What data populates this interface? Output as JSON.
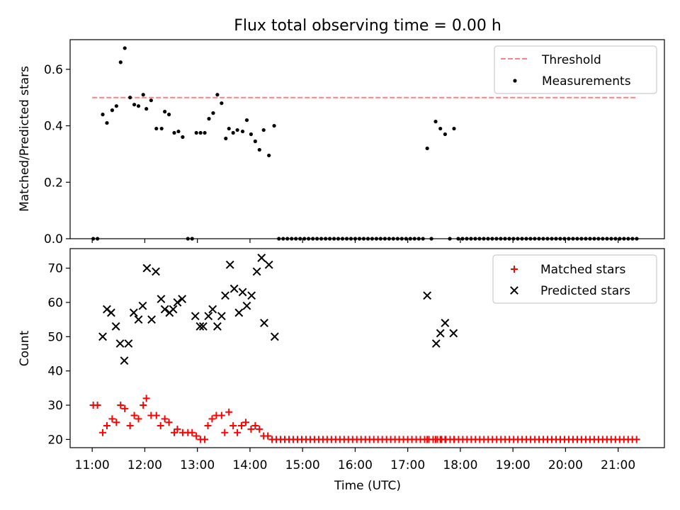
{
  "title": "Flux total observing time = 0.00 h",
  "chart_data": [
    {
      "type": "scatter",
      "panel": "top",
      "title": "Flux total observing time = 0.00 h",
      "xlabel": "",
      "ylabel": "Matched/Predicted stars",
      "xlim": [
        10.58,
        21.88
      ],
      "ylim": [
        0,
        0.705
      ],
      "yticks": [
        0.0,
        0.2,
        0.4,
        0.6
      ],
      "ytick_labels": [
        "0.0",
        "0.2",
        "0.4",
        "0.6"
      ],
      "legend_position": "top-right",
      "threshold": {
        "name": "Threshold",
        "value": 0.5,
        "x_range": [
          11.0,
          21.35
        ],
        "color": "#ff8080",
        "style": "dashed"
      },
      "series": [
        {
          "name": "Measurements",
          "color": "#000000",
          "marker": "dot",
          "points": [
            [
              11.02,
              0.0
            ],
            [
              11.1,
              0.0
            ],
            [
              11.2,
              0.44
            ],
            [
              11.28,
              0.41
            ],
            [
              11.38,
              0.455
            ],
            [
              11.46,
              0.47
            ],
            [
              11.54,
              0.625
            ],
            [
              11.62,
              0.675
            ],
            [
              11.72,
              0.5
            ],
            [
              11.8,
              0.475
            ],
            [
              11.88,
              0.47
            ],
            [
              11.97,
              0.51
            ],
            [
              12.03,
              0.46
            ],
            [
              12.12,
              0.49
            ],
            [
              12.22,
              0.39
            ],
            [
              12.32,
              0.39
            ],
            [
              12.38,
              0.45
            ],
            [
              12.46,
              0.44
            ],
            [
              12.56,
              0.375
            ],
            [
              12.64,
              0.38
            ],
            [
              12.72,
              0.36
            ],
            [
              12.82,
              0.0
            ],
            [
              12.9,
              0.0
            ],
            [
              12.98,
              0.375
            ],
            [
              13.06,
              0.375
            ],
            [
              13.14,
              0.375
            ],
            [
              13.22,
              0.425
            ],
            [
              13.3,
              0.445
            ],
            [
              13.38,
              0.51
            ],
            [
              13.46,
              0.48
            ],
            [
              13.54,
              0.355
            ],
            [
              13.6,
              0.39
            ],
            [
              13.68,
              0.375
            ],
            [
              13.76,
              0.385
            ],
            [
              13.86,
              0.38
            ],
            [
              13.94,
              0.42
            ],
            [
              14.02,
              0.37
            ],
            [
              14.1,
              0.345
            ],
            [
              14.18,
              0.315
            ],
            [
              14.26,
              0.385
            ],
            [
              14.36,
              0.295
            ],
            [
              14.46,
              0.4
            ],
            [
              17.37,
              0.32
            ],
            [
              17.53,
              0.415
            ],
            [
              17.62,
              0.39
            ],
            [
              17.71,
              0.37
            ],
            [
              17.88,
              0.39
            ]
          ],
          "zero_runs": [
            {
              "start": 14.55,
              "end": 17.27,
              "step": 0.0806
            },
            {
              "start": 17.45,
              "end": 17.45,
              "step": 0.08
            },
            {
              "start": 17.8,
              "end": 17.8,
              "step": 0.08
            },
            {
              "start": 17.96,
              "end": 21.35,
              "step": 0.0808
            }
          ]
        }
      ],
      "legend": [
        "Threshold",
        "Measurements"
      ]
    },
    {
      "type": "scatter",
      "panel": "bottom",
      "xlabel": "Time (UTC)",
      "ylabel": "Count",
      "xlim": [
        10.58,
        21.88
      ],
      "ylim": [
        17.6,
        75.7
      ],
      "xticks": [
        11,
        12,
        13,
        14,
        15,
        16,
        17,
        18,
        19,
        20,
        21
      ],
      "xtick_labels": [
        "11:00",
        "12:00",
        "13:00",
        "14:00",
        "15:00",
        "16:00",
        "17:00",
        "18:00",
        "19:00",
        "20:00",
        "21:00"
      ],
      "yticks": [
        20,
        30,
        40,
        50,
        60,
        70
      ],
      "ytick_labels": [
        "20",
        "30",
        "40",
        "50",
        "60",
        "70"
      ],
      "legend_position": "top-right",
      "series": [
        {
          "name": "Matched stars",
          "color": "#ff0000",
          "marker": "plus",
          "points": [
            [
              11.02,
              30
            ],
            [
              11.1,
              30
            ],
            [
              11.2,
              22
            ],
            [
              11.28,
              24
            ],
            [
              11.38,
              26
            ],
            [
              11.46,
              25
            ],
            [
              11.54,
              30
            ],
            [
              11.62,
              29
            ],
            [
              11.72,
              24
            ],
            [
              11.8,
              27
            ],
            [
              11.88,
              26
            ],
            [
              11.97,
              30
            ],
            [
              12.03,
              32
            ],
            [
              12.12,
              27
            ],
            [
              12.22,
              27
            ],
            [
              12.3,
              24
            ],
            [
              12.38,
              26
            ],
            [
              12.46,
              25
            ],
            [
              12.56,
              22
            ],
            [
              12.62,
              23
            ],
            [
              12.72,
              22
            ],
            [
              12.82,
              22
            ],
            [
              12.9,
              22
            ],
            [
              12.98,
              21
            ],
            [
              13.06,
              20
            ],
            [
              13.14,
              20
            ],
            [
              13.2,
              24
            ],
            [
              13.28,
              26
            ],
            [
              13.36,
              27
            ],
            [
              13.46,
              27
            ],
            [
              13.52,
              22
            ],
            [
              13.6,
              28
            ],
            [
              13.68,
              24
            ],
            [
              13.76,
              22
            ],
            [
              13.84,
              24
            ],
            [
              13.92,
              25
            ],
            [
              14.02,
              23
            ],
            [
              14.1,
              24
            ],
            [
              14.18,
              23
            ],
            [
              14.26,
              21
            ],
            [
              14.34,
              21
            ],
            [
              14.42,
              20
            ],
            [
              17.37,
              20
            ],
            [
              17.53,
              20
            ],
            [
              17.62,
              20
            ],
            [
              17.71,
              20
            ],
            [
              17.88,
              20
            ]
          ],
          "flat_runs": [
            {
              "start": 14.5,
              "end": 21.35,
              "step": 0.0806,
              "value": 20
            }
          ]
        },
        {
          "name": "Predicted stars",
          "color": "#000000",
          "marker": "x",
          "points": [
            [
              11.2,
              50
            ],
            [
              11.28,
              58
            ],
            [
              11.36,
              57
            ],
            [
              11.45,
              53
            ],
            [
              11.53,
              48
            ],
            [
              11.61,
              43
            ],
            [
              11.69,
              48
            ],
            [
              11.79,
              57
            ],
            [
              11.88,
              55
            ],
            [
              11.96,
              59
            ],
            [
              12.04,
              70
            ],
            [
              12.13,
              55
            ],
            [
              12.21,
              69
            ],
            [
              12.31,
              61
            ],
            [
              12.38,
              58
            ],
            [
              12.47,
              57
            ],
            [
              12.54,
              58
            ],
            [
              12.62,
              60
            ],
            [
              12.71,
              61
            ],
            [
              12.96,
              56
            ],
            [
              13.05,
              53
            ],
            [
              13.11,
              53
            ],
            [
              13.21,
              56
            ],
            [
              13.29,
              58
            ],
            [
              13.38,
              53
            ],
            [
              13.46,
              56
            ],
            [
              13.53,
              62
            ],
            [
              13.62,
              71
            ],
            [
              13.7,
              64
            ],
            [
              13.79,
              57
            ],
            [
              13.86,
              63
            ],
            [
              13.94,
              59
            ],
            [
              14.03,
              62
            ],
            [
              14.13,
              69
            ],
            [
              14.22,
              73
            ],
            [
              14.27,
              54
            ],
            [
              14.36,
              71
            ],
            [
              14.47,
              50
            ],
            [
              17.37,
              62
            ],
            [
              17.54,
              48
            ],
            [
              17.62,
              51
            ],
            [
              17.71,
              54
            ],
            [
              17.87,
              51
            ]
          ]
        }
      ],
      "legend": [
        "Matched stars",
        "Predicted stars"
      ]
    }
  ]
}
